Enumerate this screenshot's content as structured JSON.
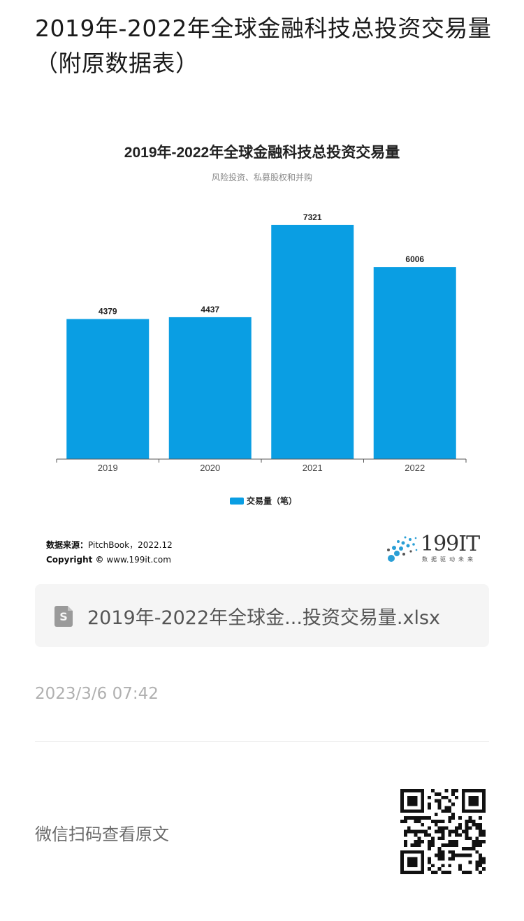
{
  "page": {
    "title": "2019年-2022年全球金融科技总投资交易量（附原数据表）"
  },
  "chart_data": {
    "type": "bar",
    "title": "2019年-2022年全球金融科技总投资交易量",
    "subtitle": "风险投资、私募股权和并购",
    "categories": [
      "2019",
      "2020",
      "2021",
      "2022"
    ],
    "series": [
      {
        "name": "交易量（笔）",
        "values": [
          4379,
          4437,
          7321,
          6006
        ],
        "color": "#0a9ee3"
      }
    ],
    "ylim": [
      0,
      7800
    ],
    "grid": false,
    "legend_position": "bottom",
    "data_labels": true
  },
  "chart_footer": {
    "source_label": "数据来源：",
    "source_value": "PitchBook，2022.12",
    "copyright_label": "Copyright ©",
    "copyright_value": "www.199it.com"
  },
  "logo": {
    "text": "199IT",
    "tagline": "数据驱动未来"
  },
  "file": {
    "icon": "file-s-icon",
    "icon_letter": "S",
    "name": "2019年-2022年全球金...投资交易量.xlsx"
  },
  "timestamp": "2023/3/6 07:42",
  "qr": {
    "text": "微信扫码查看原文"
  }
}
